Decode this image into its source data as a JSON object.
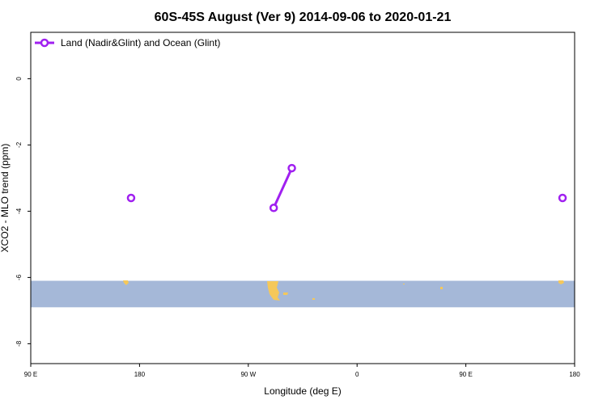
{
  "chart_data": {
    "type": "line",
    "title": "60S-45S August (Ver 9)   2014-09-06 to 2020-01-21",
    "xlabel": "Longitude (deg E)",
    "ylabel": "XCO2 - MLO trend (ppm)",
    "xlim": [
      90,
      540
    ],
    "ylim": [
      -8.6,
      1.4
    ],
    "x_ticks": [
      {
        "value": 90,
        "label": "90 E"
      },
      {
        "value": 180,
        "label": "180"
      },
      {
        "value": 270,
        "label": "90 W"
      },
      {
        "value": 360,
        "label": "0"
      },
      {
        "value": 450,
        "label": "90 E"
      },
      {
        "value": 540,
        "label": "180"
      }
    ],
    "y_ticks": [
      {
        "value": 0,
        "label": "0"
      },
      {
        "value": -2,
        "label": "-2"
      },
      {
        "value": -4,
        "label": "-4"
      },
      {
        "value": -6,
        "label": "-6"
      },
      {
        "value": -8,
        "label": "-8"
      }
    ],
    "legend_position": "top-left",
    "grid": false,
    "series": [
      {
        "name": "Land (Nadir&Glint) and Ocean (Glint)",
        "color": "#a020f0",
        "segments": [
          [
            [
              173,
              -3.6
            ]
          ],
          [
            [
              291,
              -3.9
            ],
            [
              306,
              -2.7
            ]
          ],
          [
            [
              530,
              -3.6
            ]
          ]
        ]
      }
    ],
    "band": {
      "y_range": [
        -6.1,
        -6.9
      ],
      "color": "#a5b8d8"
    },
    "land_color": "#f5c85a"
  }
}
